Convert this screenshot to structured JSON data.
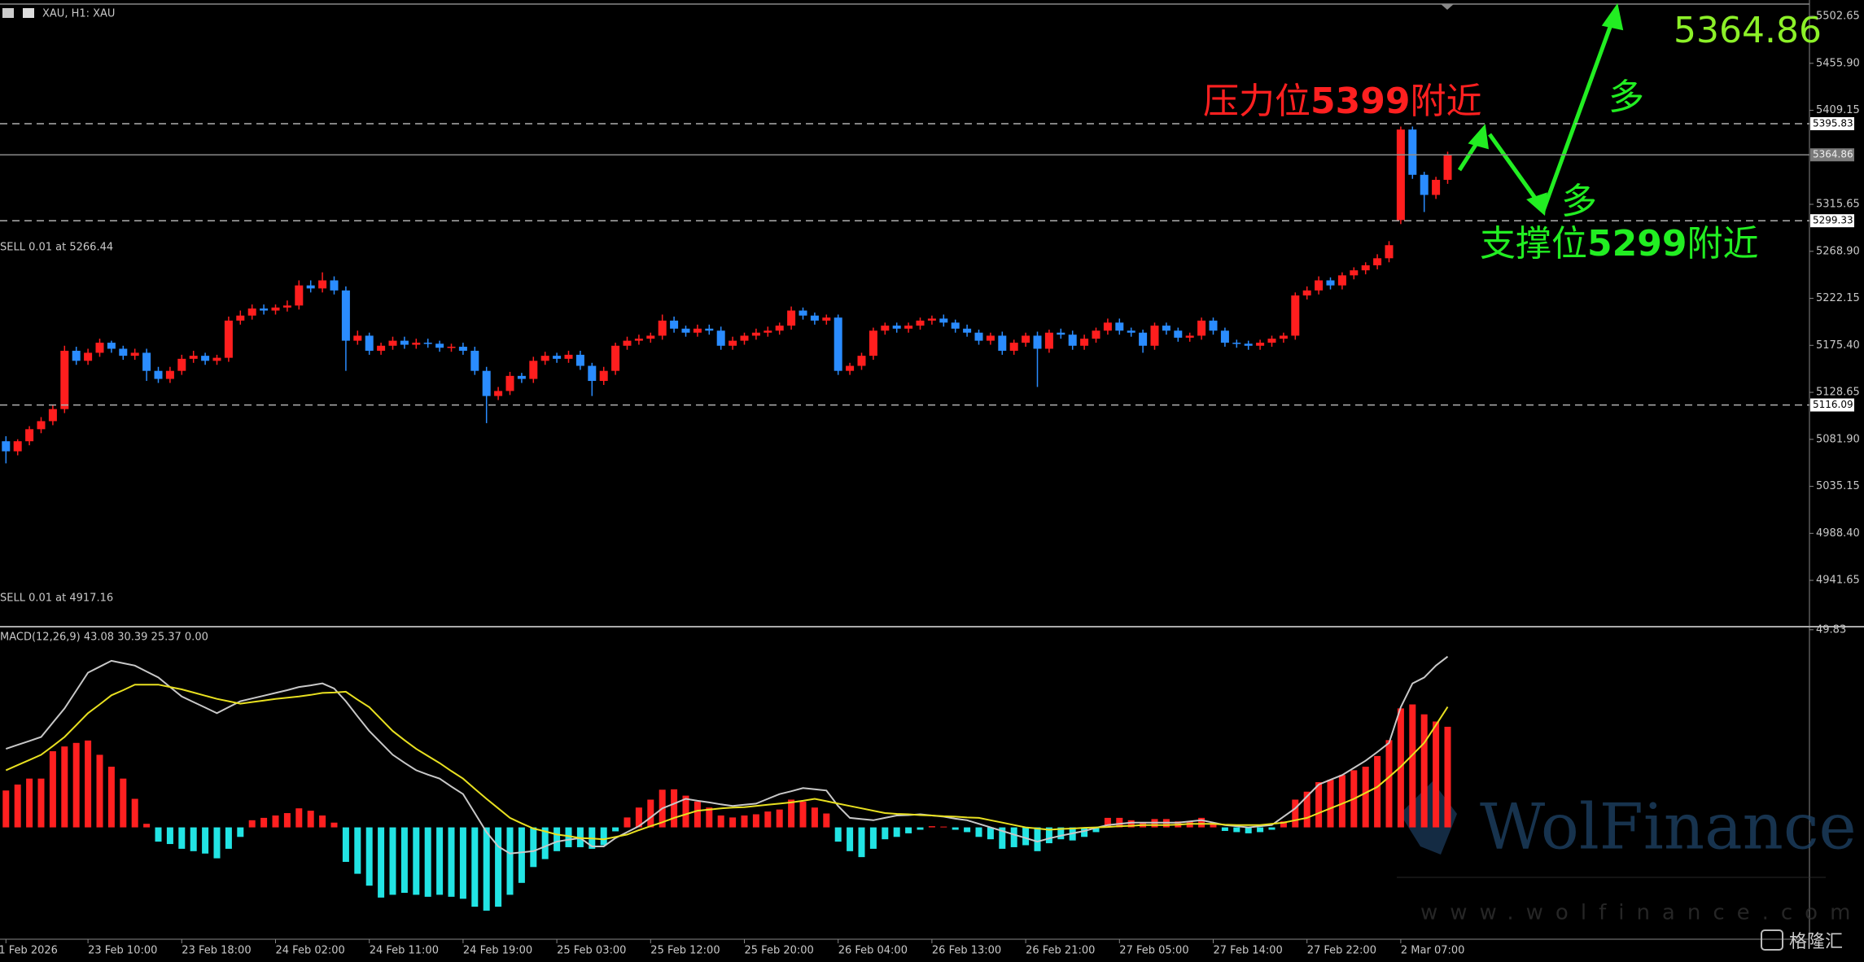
{
  "chart_data": [
    {
      "type": "candlestick",
      "title": "XAU, H1: XAU",
      "open": [
        5080,
        5070,
        5080,
        5092,
        5100,
        5112,
        5170,
        5160,
        5168,
        5178,
        5172,
        5165,
        5168,
        5150,
        5142,
        5150,
        5162,
        5165,
        5160,
        5163,
        5200,
        5205,
        5212,
        5210,
        5213,
        5215,
        5235,
        5232,
        5240,
        5230,
        5180,
        5185,
        5170,
        5175,
        5180,
        5176,
        5178,
        5177,
        5173,
        5174,
        5170,
        5150,
        5125,
        5130,
        5145,
        5142,
        5160,
        5165,
        5162,
        5166,
        5155,
        5140,
        5150,
        5175,
        5180,
        5182,
        5185,
        5200,
        5192,
        5188,
        5192,
        5190,
        5175,
        5180,
        5185,
        5188,
        5190,
        5195,
        5210,
        5205,
        5200,
        5203,
        5150,
        5155,
        5165,
        5190,
        5195,
        5192,
        5195,
        5200,
        5202,
        5198,
        5192,
        5188,
        5180,
        5185,
        5170,
        5178,
        5185,
        5172,
        5188,
        5186,
        5175,
        5182,
        5190,
        5198,
        5190,
        5188,
        5175,
        5195,
        5190,
        5183,
        5185,
        5200,
        5190,
        5178,
        5177,
        5175,
        5178,
        5182,
        5185,
        5225,
        5230,
        5240,
        5235,
        5245,
        5250,
        5255,
        5262,
        5300,
        5390,
        5345,
        5325,
        5340
      ],
      "high": [
        5085,
        5082,
        5095,
        5104,
        5116,
        5175,
        5174,
        5172,
        5182,
        5180,
        5175,
        5172,
        5172,
        5154,
        5154,
        5166,
        5170,
        5168,
        5166,
        5204,
        5210,
        5216,
        5216,
        5216,
        5220,
        5240,
        5240,
        5248,
        5244,
        5234,
        5190,
        5188,
        5178,
        5184,
        5184,
        5182,
        5182,
        5180,
        5177,
        5178,
        5174,
        5154,
        5134,
        5149,
        5148,
        5164,
        5169,
        5168,
        5170,
        5170,
        5158,
        5154,
        5178,
        5184,
        5186,
        5188,
        5206,
        5204,
        5195,
        5196,
        5196,
        5194,
        5184,
        5188,
        5192,
        5194,
        5198,
        5214,
        5213,
        5208,
        5206,
        5206,
        5158,
        5168,
        5193,
        5198,
        5198,
        5198,
        5203,
        5205,
        5206,
        5201,
        5196,
        5191,
        5188,
        5189,
        5181,
        5188,
        5189,
        5191,
        5192,
        5190,
        5186,
        5193,
        5202,
        5202,
        5193,
        5191,
        5198,
        5198,
        5193,
        5188,
        5203,
        5203,
        5193,
        5181,
        5180,
        5181,
        5185,
        5188,
        5228,
        5234,
        5244,
        5243,
        5248,
        5253,
        5258,
        5266,
        5279,
        5393,
        5393,
        5348,
        5343,
        5368
      ],
      "low": [
        5058,
        5066,
        5076,
        5088,
        5096,
        5108,
        5156,
        5156,
        5164,
        5168,
        5161,
        5161,
        5140,
        5138,
        5138,
        5146,
        5158,
        5156,
        5156,
        5159,
        5196,
        5201,
        5206,
        5206,
        5209,
        5211,
        5228,
        5228,
        5226,
        5150,
        5176,
        5166,
        5166,
        5171,
        5172,
        5172,
        5173,
        5169,
        5169,
        5166,
        5146,
        5098,
        5121,
        5126,
        5138,
        5138,
        5156,
        5158,
        5158,
        5151,
        5125,
        5136,
        5146,
        5171,
        5176,
        5178,
        5181,
        5188,
        5184,
        5184,
        5186,
        5171,
        5171,
        5176,
        5181,
        5184,
        5186,
        5191,
        5201,
        5196,
        5196,
        5146,
        5146,
        5151,
        5161,
        5186,
        5188,
        5188,
        5191,
        5196,
        5194,
        5188,
        5184,
        5176,
        5176,
        5166,
        5166,
        5174,
        5134,
        5168,
        5182,
        5171,
        5171,
        5178,
        5186,
        5186,
        5184,
        5168,
        5171,
        5186,
        5179,
        5179,
        5181,
        5186,
        5174,
        5173,
        5171,
        5171,
        5174,
        5178,
        5181,
        5221,
        5226,
        5231,
        5231,
        5241,
        5246,
        5251,
        5258,
        5296,
        5341,
        5308,
        5321,
        5336
      ],
      "close": [
        5070,
        5080,
        5092,
        5100,
        5112,
        5170,
        5160,
        5168,
        5178,
        5172,
        5165,
        5168,
        5150,
        5142,
        5150,
        5162,
        5165,
        5160,
        5163,
        5200,
        5205,
        5212,
        5210,
        5213,
        5215,
        5235,
        5232,
        5240,
        5230,
        5180,
        5185,
        5170,
        5175,
        5180,
        5176,
        5178,
        5177,
        5173,
        5174,
        5170,
        5150,
        5125,
        5130,
        5145,
        5142,
        5160,
        5165,
        5162,
        5166,
        5155,
        5140,
        5150,
        5175,
        5180,
        5182,
        5185,
        5200,
        5192,
        5188,
        5192,
        5190,
        5175,
        5180,
        5185,
        5188,
        5190,
        5195,
        5210,
        5205,
        5200,
        5203,
        5150,
        5155,
        5165,
        5190,
        5195,
        5192,
        5195,
        5200,
        5202,
        5198,
        5192,
        5188,
        5180,
        5185,
        5170,
        5178,
        5185,
        5172,
        5188,
        5186,
        5175,
        5182,
        5190,
        5198,
        5190,
        5188,
        5175,
        5195,
        5190,
        5183,
        5185,
        5200,
        5190,
        5178,
        5177,
        5175,
        5178,
        5182,
        5185,
        5225,
        5230,
        5240,
        5235,
        5245,
        5250,
        5255,
        5262,
        5275,
        5390,
        5345,
        5325,
        5340,
        5365
      ],
      "up_color": "#ff1e1e",
      "down_color": "#2a8cff",
      "ylim": [
        4898,
        5514
      ],
      "yticks": [
        5502.65,
        {
          "value": 5455.9,
          "label": "5455.90"
        },
        5409.15,
        5315.65,
        {
          "value": 5268.9,
          "label": "5268.90"
        },
        5222.15,
        {
          "value": 5175.4,
          "label": "5175.40"
        },
        5128.65,
        {
          "value": 5081.9,
          "label": "5081.90"
        },
        5035.15,
        {
          "value": 4988.4,
          "label": "4988.40"
        },
        4941.65
      ],
      "xticks": [
        {
          "value": 0,
          "label": "1 Feb 2026"
        },
        {
          "value": 7,
          "label": "23 Feb 10:00"
        },
        {
          "value": 15,
          "label": "23 Feb 18:00"
        },
        {
          "value": 23,
          "label": "24 Feb 02:00"
        },
        {
          "value": 31,
          "label": "24 Feb 11:00"
        },
        {
          "value": 39,
          "label": "24 Feb 19:00"
        },
        {
          "value": 47,
          "label": "25 Feb 03:00"
        },
        {
          "value": 55,
          "label": "25 Feb 12:00"
        },
        {
          "value": 63,
          "label": "25 Feb 20:00"
        },
        {
          "value": 71,
          "label": "26 Feb 04:00"
        },
        {
          "value": 79,
          "label": "26 Feb 13:00"
        },
        {
          "value": 87,
          "label": "26 Feb 21:00"
        },
        {
          "value": 95,
          "label": "27 Feb 05:00"
        },
        {
          "value": 103,
          "label": "27 Feb 14:00"
        },
        {
          "value": 111,
          "label": "27 Feb 22:00"
        },
        {
          "value": 119,
          "label": "2 Mar 07:00"
        }
      ],
      "levels": [
        {
          "value": 5395.83,
          "style": "dashed"
        },
        {
          "value": 5364.86,
          "style": "solid"
        },
        {
          "value": 5299.33,
          "style": "dashed"
        },
        {
          "value": 5116.09,
          "style": "dashed"
        }
      ],
      "orders": [
        "SELL 0.01 at 5266.44",
        "SELL 0.01 at 4917.16"
      ],
      "annotations": {
        "resistance": [
          "压力位",
          "5399",
          "附近"
        ],
        "support": [
          "支撑位",
          "5299",
          "附近"
        ],
        "bias": [
          "多",
          "多"
        ]
      }
    },
    {
      "type": "macd",
      "title": "MACD(12,26,9) 43.08 30.39 25.37 0.00",
      "histogram": {
        "up_color": "#ff2020",
        "down_color": "#22e4e4",
        "values": [
          9.3,
          10.8,
          12.3,
          12.3,
          19.2,
          20.4,
          21.3,
          21.9,
          18.3,
          15.3,
          12.3,
          7.2,
          0.9,
          -3.6,
          -4.2,
          -5.4,
          -6,
          -6.6,
          -7.8,
          -5.4,
          -2.4,
          1.8,
          2.4,
          3,
          3.6,
          4.8,
          4.2,
          3,
          1.2,
          -8.7,
          -11.7,
          -14.7,
          -17.7,
          -17,
          -16.5,
          -17,
          -17.5,
          -17,
          -17.5,
          -18,
          -20,
          -21,
          -20,
          -17,
          -14,
          -10,
          -8,
          -6,
          -5,
          -5,
          -5.4,
          -4.5,
          -1,
          2.5,
          5,
          7,
          9.5,
          9.6,
          8,
          6.5,
          5,
          3,
          2.5,
          3,
          3.3,
          4,
          4.5,
          7,
          6.5,
          5,
          3.5,
          -3.6,
          -6,
          -7.5,
          -5.4,
          -3,
          -2.4,
          -1.5,
          -0.6,
          0.3,
          0.2,
          -0.6,
          -1.2,
          -2.4,
          -3,
          -5.4,
          -5,
          -4.5,
          -6,
          -4,
          -3,
          -3.3,
          -2.4,
          -1.2,
          2.4,
          2.4,
          1.8,
          1.2,
          2.1,
          2.1,
          1.5,
          1.5,
          2.4,
          1.2,
          -0.9,
          -1.2,
          -1.5,
          -1.2,
          -0.6,
          1.5,
          7,
          9,
          11.4,
          12,
          13.2,
          14.4,
          15.3,
          18,
          22,
          30,
          31,
          28.5,
          26.7,
          25.37
        ]
      },
      "series": [
        {
          "color": "#c8c8c8",
          "values": [
            19.8,
            20.8,
            21.8,
            22.8,
            26.4,
            30,
            34.5,
            39,
            40.5,
            42,
            41.4,
            40.8,
            39.3,
            37.8,
            35.4,
            33,
            31.6,
            30.2,
            28.8,
            30.3,
            31.8,
            32.5,
            33.2,
            33.9,
            34.6,
            35.4,
            35.8,
            36.3,
            35,
            31.8,
            28,
            24.3,
            21.3,
            18.3,
            16.3,
            14.4,
            13.3,
            12.3,
            10.3,
            8.4,
            3.6,
            -1.2,
            -4.8,
            -6.6,
            -6.3,
            -6,
            -4.8,
            -3.6,
            -3.1,
            -2.7,
            -4.8,
            -4.8,
            -2.7,
            -1.2,
            0.3,
            2.5,
            4.8,
            6,
            7.2,
            6.7,
            6.3,
            5.8,
            5.4,
            5.7,
            6,
            7.2,
            8.4,
            9.1,
            9.9,
            9.6,
            9.3,
            5.4,
            2.4,
            2.1,
            1.8,
            2.4,
            3,
            3.1,
            3.3,
            3,
            2.7,
            2.2,
            1.8,
            0.9,
            0,
            -0.9,
            -1.8,
            -2.7,
            -3.6,
            -2.8,
            -2.1,
            -1.5,
            -0.9,
            -0.1,
            0.6,
            0.9,
            1.2,
            1.2,
            1.2,
            1.2,
            1.2,
            1.5,
            1.8,
            1.2,
            0.6,
            0.3,
            0,
            0.3,
            0.6,
            2.7,
            4.8,
            7.8,
            10.8,
            12,
            13.2,
            15,
            16.8,
            19,
            21.3,
            30.3,
            36.3,
            37.8,
            40.8,
            43.08
          ]
        },
        {
          "color": "#e8e020",
          "values": [
            14.4,
            15.7,
            17,
            18.3,
            20.5,
            22.8,
            25.8,
            28.8,
            31,
            33.3,
            34.6,
            36,
            36,
            36,
            35.4,
            34.8,
            34,
            33.2,
            32.4,
            31.8,
            31.2,
            31.6,
            32,
            32.4,
            32.7,
            33,
            33.4,
            33.9,
            34,
            34.2,
            32.2,
            30.3,
            27.3,
            24.3,
            22,
            19.8,
            18,
            16.2,
            14.2,
            12.3,
            9.7,
            7.2,
            4.8,
            2.4,
            1,
            -0.3,
            -1,
            -1.8,
            -2.2,
            -2.7,
            -2.8,
            -3,
            -2.4,
            -1.8,
            -0.7,
            0.3,
            1.3,
            2.4,
            3.3,
            4.2,
            4.5,
            4.8,
            5,
            5.1,
            5.4,
            5.7,
            6,
            6.3,
            6.7,
            7.2,
            6.6,
            6,
            5.4,
            4.8,
            4.2,
            3.6,
            3.4,
            3.3,
            3.1,
            3,
            2.8,
            2.7,
            2.5,
            2.4,
            1.8,
            1.2,
            0.6,
            0,
            -0.3,
            -0.6,
            -0.4,
            -0.3,
            -0.1,
            0,
            0.1,
            0.3,
            0.4,
            0.6,
            0.6,
            0.6,
            0.7,
            0.9,
            0.9,
            0.9,
            0.7,
            0.6,
            0.6,
            0.6,
            0.9,
            1.2,
            1.8,
            2.4,
            3.6,
            4.8,
            6,
            7.2,
            8.7,
            10.2,
            12.7,
            15.3,
            18.3,
            21.3,
            25.8,
            30.39
          ]
        }
      ],
      "ylim": [
        -28.2,
        50.4
      ],
      "yticks": [
        49.83
      ]
    }
  ],
  "watermark": {
    "brand": "WolFinance",
    "url": "www.wolfinance.com",
    "source": "格隆汇"
  }
}
